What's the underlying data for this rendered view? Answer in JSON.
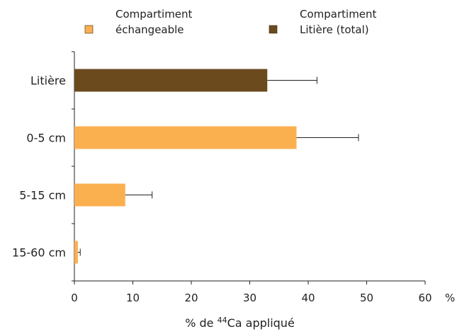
{
  "chart_data": {
    "type": "bar",
    "orientation": "horizontal",
    "categories": [
      "Litière",
      "0-5 cm",
      "5-15 cm",
      "15-60 cm"
    ],
    "series": [
      {
        "name": "Compartiment échangeable",
        "legend_lines": [
          "Compartiment",
          "échangeable"
        ],
        "color": "#FBB04F",
        "values": [
          null,
          38.0,
          8.7,
          0.6
        ],
        "errors": [
          null,
          10.6,
          4.6,
          0.4
        ]
      },
      {
        "name": "Compartiment Litière (total)",
        "legend_lines": [
          "Compartiment",
          "Litière (total)"
        ],
        "color": "#6B4A1E",
        "values": [
          33.0,
          null,
          null,
          null
        ],
        "errors": [
          8.5,
          null,
          null,
          null
        ]
      }
    ],
    "xlim": [
      0,
      60
    ],
    "xticks": [
      0,
      10,
      20,
      30,
      40,
      50,
      60
    ],
    "x_unit": "%",
    "xlabel_parts": [
      "% de ",
      "44",
      "Ca appliqué"
    ],
    "legend_position": "top",
    "grid": false
  }
}
